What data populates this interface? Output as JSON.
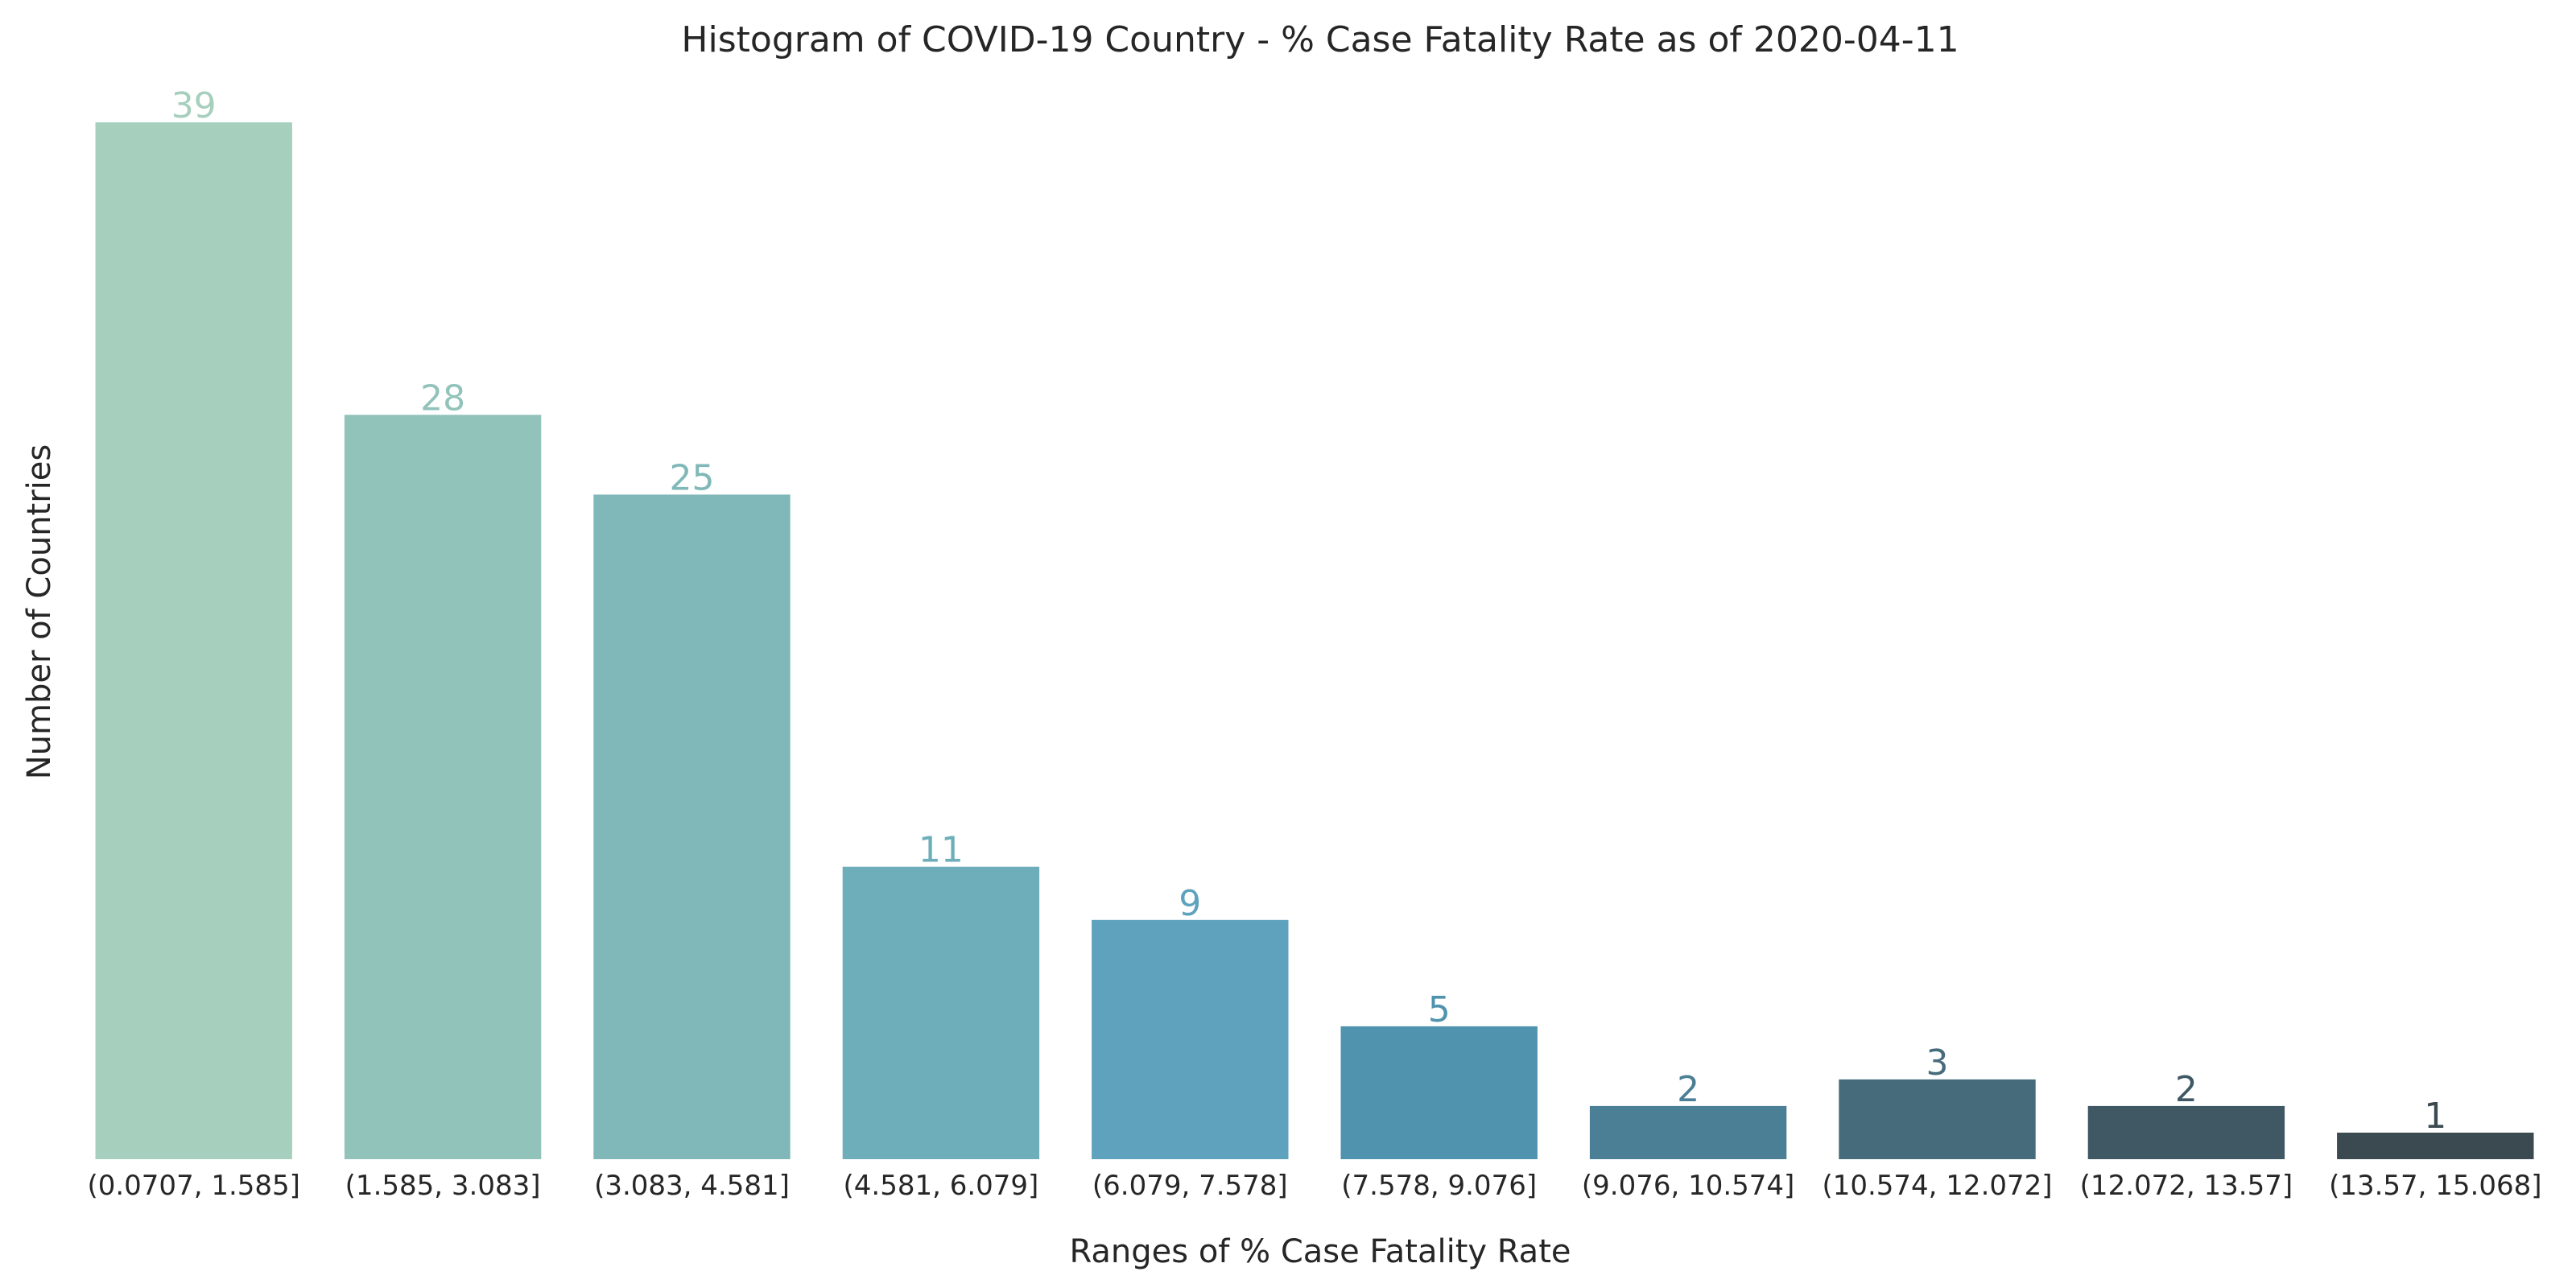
{
  "chart_data": {
    "type": "bar",
    "title": "Histogram of COVID-19 Country - % Case Fatality Rate as of 2020-04-11",
    "xlabel": "Ranges of % Case Fatality Rate",
    "ylabel": "Number of Countries",
    "categories": [
      "(0.0707, 1.585]",
      "(1.585, 3.083]",
      "(3.083, 4.581]",
      "(4.581, 6.079]",
      "(6.079, 7.578]",
      "(7.578, 9.076]",
      "(9.076, 10.574]",
      "(10.574, 12.072]",
      "(12.072, 13.57]",
      "(13.57, 15.068]"
    ],
    "values": [
      39,
      28,
      25,
      11,
      9,
      5,
      2,
      3,
      2,
      1
    ],
    "ylim": [
      0,
      40
    ],
    "grid": false,
    "legend": "none",
    "colors": [
      "#a6cfbd",
      "#92c3bb",
      "#80b8b9",
      "#6eaeba",
      "#5ea2bd",
      "#5093ae",
      "#4a7f96",
      "#466b7b",
      "#3f5864",
      "#3a4a50"
    ]
  }
}
